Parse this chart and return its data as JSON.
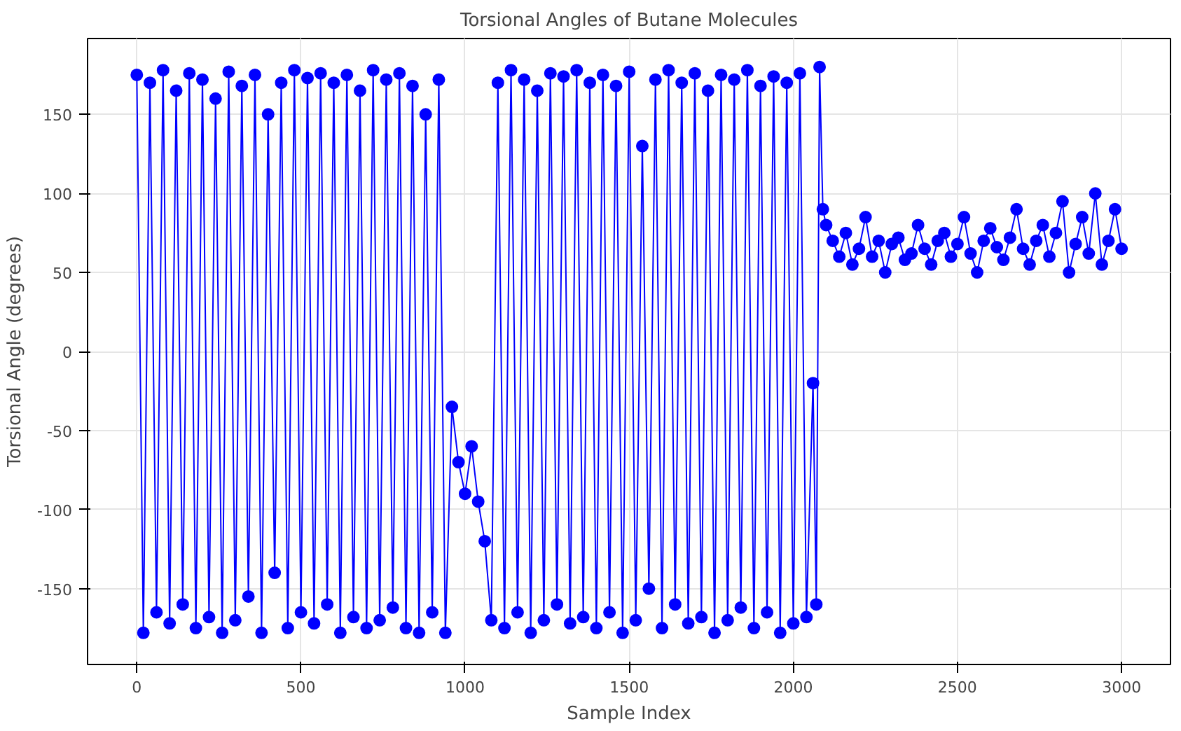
{
  "chart_data": {
    "type": "line",
    "title": "Torsional Angles of Butane Molecules",
    "xlabel": "Sample Index",
    "ylabel": "Torsional Angle (degrees)",
    "xlim": [
      -150,
      3149
    ],
    "ylim": [
      -198,
      198
    ],
    "xticks": [
      0,
      500,
      1000,
      1500,
      2000,
      2500,
      3000
    ],
    "yticks": [
      -150,
      -100,
      -50,
      0,
      50,
      100,
      150
    ],
    "grid": true,
    "marker": "circle",
    "line_style": "solid",
    "series": [
      {
        "color": "#0000ff",
        "x": [
          0,
          20,
          40,
          60,
          80,
          100,
          120,
          140,
          160,
          180,
          200,
          220,
          240,
          260,
          280,
          300,
          320,
          340,
          360,
          380,
          400,
          420,
          440,
          460,
          480,
          500,
          520,
          540,
          560,
          580,
          600,
          620,
          640,
          660,
          680,
          700,
          720,
          740,
          760,
          780,
          800,
          820,
          840,
          860,
          880,
          900,
          920,
          940,
          960,
          980,
          1000,
          1020,
          1040,
          1060,
          1080,
          1100,
          1120,
          1140,
          1160,
          1180,
          1200,
          1220,
          1240,
          1260,
          1280,
          1300,
          1320,
          1340,
          1360,
          1380,
          1400,
          1420,
          1440,
          1460,
          1480,
          1500,
          1520,
          1540,
          1560,
          1580,
          1600,
          1620,
          1640,
          1660,
          1680,
          1700,
          1720,
          1740,
          1760,
          1780,
          1800,
          1820,
          1840,
          1860,
          1880,
          1900,
          1920,
          1940,
          1960,
          1980,
          2000,
          2020,
          2040,
          2060,
          2070,
          2080,
          2090,
          2100,
          2120,
          2140,
          2160,
          2180,
          2200,
          2220,
          2240,
          2260,
          2280,
          2300,
          2320,
          2340,
          2360,
          2380,
          2400,
          2420,
          2440,
          2460,
          2480,
          2500,
          2520,
          2540,
          2560,
          2580,
          2600,
          2620,
          2640,
          2660,
          2680,
          2700,
          2720,
          2740,
          2760,
          2780,
          2800,
          2820,
          2840,
          2860,
          2880,
          2900,
          2920,
          2940,
          2960,
          2980,
          3000
        ],
        "values": [
          175,
          -178,
          170,
          -165,
          178,
          -172,
          165,
          -160,
          176,
          -175,
          172,
          -168,
          160,
          -178,
          177,
          -170,
          168,
          -155,
          175,
          -178,
          150,
          -140,
          170,
          -175,
          178,
          -165,
          173,
          -172,
          176,
          -160,
          170,
          -178,
          175,
          -168,
          165,
          -175,
          178,
          -170,
          172,
          -162,
          176,
          -175,
          168,
          -178,
          150,
          -165,
          172,
          -178,
          -35,
          -70,
          -90,
          -60,
          -95,
          -120,
          -170,
          170,
          -175,
          178,
          -165,
          172,
          -178,
          165,
          -170,
          176,
          -160,
          174,
          -172,
          178,
          -168,
          170,
          -175,
          175,
          -165,
          168,
          -178,
          177,
          -170,
          130,
          -150,
          172,
          -175,
          178,
          -160,
          170,
          -172,
          176,
          -168,
          165,
          -178,
          175,
          -170,
          172,
          -162,
          178,
          -175,
          168,
          -165,
          174,
          -178,
          170,
          -172,
          176,
          -168,
          -20,
          -160,
          180,
          90,
          80,
          70,
          60,
          75,
          55,
          65,
          85,
          60,
          70,
          50,
          68,
          72,
          58,
          62,
          80,
          65,
          55,
          70,
          75,
          60,
          68,
          85,
          62,
          50,
          70,
          78,
          66,
          58,
          72,
          90,
          65,
          55,
          70,
          80,
          60,
          75,
          95,
          50,
          68,
          85,
          62,
          100,
          55,
          70,
          90,
          65
        ]
      }
    ]
  }
}
